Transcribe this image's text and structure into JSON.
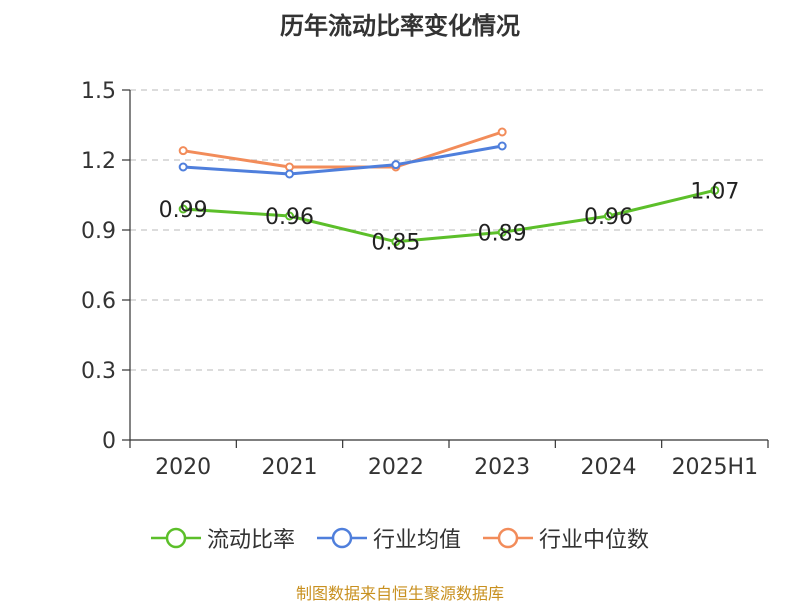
{
  "title": "历年流动比率变化情况",
  "source": "制图数据来自恒生聚源数据库",
  "chart_data": {
    "type": "line",
    "title": "历年流动比率变化情况",
    "categories": [
      "2020",
      "2021",
      "2022",
      "2023",
      "2024",
      "2025H1"
    ],
    "ylim": [
      0,
      1.5
    ],
    "yticks": [
      0,
      0.3,
      0.6,
      0.9,
      1.2,
      1.5
    ],
    "ytick_labels": [
      "0",
      "0.3",
      "0.6",
      "0.9",
      "1.2",
      "1.5"
    ],
    "grid": true,
    "legend_position": "bottom",
    "series": [
      {
        "name": "流动比率",
        "color": "#5cbf2a",
        "values": [
          0.99,
          0.96,
          0.85,
          0.89,
          0.96,
          1.07
        ],
        "labels": [
          "0.99",
          "0.96",
          "0.85",
          "0.89",
          "0.96",
          "1.07"
        ]
      },
      {
        "name": "行业均值",
        "color": "#4f7fdc",
        "values": [
          1.17,
          1.14,
          1.18,
          1.26,
          null,
          null
        ]
      },
      {
        "name": "行业中位数",
        "color": "#f28c5a",
        "values": [
          1.24,
          1.17,
          1.17,
          1.32,
          null,
          null
        ]
      }
    ]
  }
}
